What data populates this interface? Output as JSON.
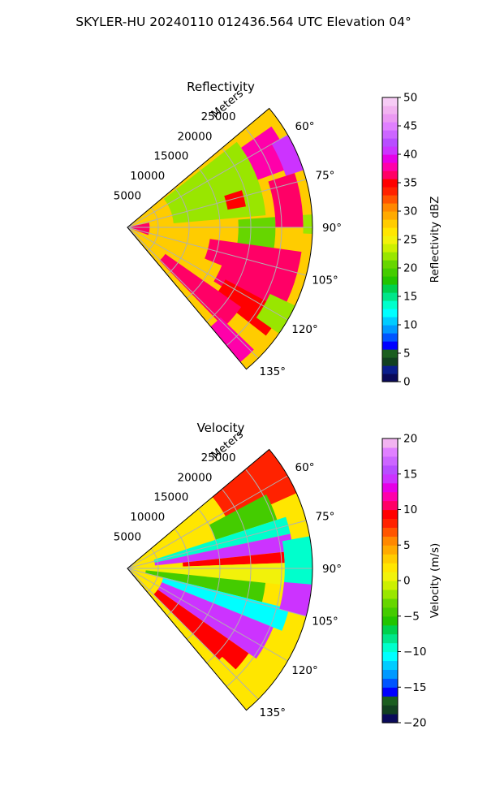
{
  "figure": {
    "suptitle": "SKYLER-HU  20240110  012436.564 UTC Elevation 04°"
  },
  "chart_data": [
    {
      "type": "heatmap",
      "projection": "polar-sector",
      "title": "Reflectivity",
      "radial_axis_label": "Meters",
      "radial_ticks": [
        5000,
        10000,
        15000,
        20000,
        25000
      ],
      "radial_tick_labels": [
        "5000",
        "10000",
        "15000",
        "20000",
        "25000"
      ],
      "range_max_m": 30000,
      "azimuth_range_deg": [
        50,
        140
      ],
      "azimuth_ticks": [
        60,
        75,
        90,
        105,
        120,
        135
      ],
      "azimuth_tick_labels": [
        "60°",
        "75°",
        "90°",
        "105°",
        "120°",
        "135°"
      ],
      "grid": true,
      "colorbar": {
        "label": "Reflectivity dBZ",
        "min": 0,
        "max": 50,
        "ticks": [
          0,
          5,
          10,
          15,
          20,
          25,
          30,
          35,
          40,
          45,
          50
        ],
        "tick_labels": [
          "0",
          "5",
          "10",
          "15",
          "20",
          "25",
          "30",
          "35",
          "40",
          "45",
          "50"
        ],
        "colors": [
          "#0a0a5a",
          "#0a1e8c",
          "#114020",
          "#1b5e20",
          "#0000ff",
          "#0055ff",
          "#0099ff",
          "#00ccff",
          "#00ffff",
          "#00ffcc",
          "#00e68a",
          "#00d14d",
          "#22c400",
          "#44cc00",
          "#66d600",
          "#99e600",
          "#ccf000",
          "#f2f20a",
          "#ffe600",
          "#ffcc00",
          "#ffaa00",
          "#ff8800",
          "#ff5500",
          "#ff2200",
          "#ff0000",
          "#ff0066",
          "#ff00aa",
          "#e600e6",
          "#cc33ff",
          "#b84dff",
          "#cc66ff",
          "#e080ff",
          "#eb99f2",
          "#f2b3f0",
          "#f7ccf5"
        ]
      },
      "features": [
        {
          "az": [
            50,
            140
          ],
          "r": [
            0.0,
            1.0
          ],
          "level": 28
        },
        {
          "az": [
            52,
            85
          ],
          "r": [
            0.25,
            0.75
          ],
          "level": 22
        },
        {
          "az": [
            86,
            100
          ],
          "r": [
            0.6,
            0.8
          ],
          "level": 21
        },
        {
          "az": [
            55,
            70
          ],
          "r": [
            0.75,
            0.95
          ],
          "level": 38
        },
        {
          "az": [
            60,
            72
          ],
          "r": [
            0.9,
            1.0
          ],
          "level": 40
        },
        {
          "az": [
            72,
            90
          ],
          "r": [
            0.8,
            0.95
          ],
          "level": 36
        },
        {
          "az": [
            72,
            80
          ],
          "r": [
            0.55,
            0.65
          ],
          "level": 35
        },
        {
          "az": [
            98,
            112
          ],
          "r": [
            0.45,
            0.95
          ],
          "level": 36
        },
        {
          "az": [
            108,
            122
          ],
          "r": [
            0.55,
            0.95
          ],
          "level": 37
        },
        {
          "az": [
            118,
            128
          ],
          "r": [
            0.6,
            0.95
          ],
          "level": 35
        },
        {
          "az": [
            125,
            136
          ],
          "r": [
            0.25,
            0.75
          ],
          "level": 36
        },
        {
          "az": [
            134,
            140
          ],
          "r": [
            0.7,
            0.95
          ],
          "level": 38
        },
        {
          "az": [
            115,
            125
          ],
          "r": [
            0.85,
            1.0
          ],
          "level": 22
        },
        {
          "az": [
            78,
            110
          ],
          "r": [
            0.0,
            0.12
          ],
          "level": 36
        },
        {
          "az": [
            86,
            92
          ],
          "r": [
            0.95,
            1.0
          ],
          "level": 22
        }
      ]
    },
    {
      "type": "heatmap",
      "projection": "polar-sector",
      "title": "Velocity",
      "radial_axis_label": "Meters",
      "radial_ticks": [
        5000,
        10000,
        15000,
        20000,
        25000
      ],
      "radial_tick_labels": [
        "5000",
        "10000",
        "15000",
        "20000",
        "25000"
      ],
      "range_max_m": 30000,
      "azimuth_range_deg": [
        50,
        140
      ],
      "azimuth_ticks": [
        60,
        75,
        90,
        105,
        120,
        135
      ],
      "azimuth_tick_labels": [
        "60°",
        "75°",
        "90°",
        "105°",
        "120°",
        "135°"
      ],
      "grid": true,
      "colorbar": {
        "label": "Velocity (m/s)",
        "min": -20,
        "max": 20,
        "ticks": [
          -20,
          -15,
          -10,
          -5,
          0,
          5,
          10,
          15,
          20
        ],
        "tick_labels": [
          "−20",
          "−15",
          "−10",
          "−5",
          "0",
          "5",
          "10",
          "15",
          "20"
        ],
        "colors": [
          "#0a0a5a",
          "#114020",
          "#1b5e20",
          "#0000ff",
          "#0055ff",
          "#0099ff",
          "#00ccff",
          "#00ffff",
          "#00ffcc",
          "#00e68a",
          "#00d14d",
          "#22c400",
          "#44cc00",
          "#66d600",
          "#99e600",
          "#ccf000",
          "#f2f20a",
          "#ffe600",
          "#ffcc00",
          "#ffaa00",
          "#ff8800",
          "#ff5500",
          "#ff2200",
          "#ff0000",
          "#ff0066",
          "#ff00aa",
          "#e600e6",
          "#cc33ff",
          "#b84dff",
          "#cc66ff",
          "#e080ff",
          "#f2b3f0"
        ]
      },
      "features": [
        {
          "az": [
            50,
            140
          ],
          "r": [
            0.0,
            1.0
          ],
          "level": 2
        },
        {
          "az": [
            50,
            66
          ],
          "r": [
            0.6,
            1.0
          ],
          "level": 8
        },
        {
          "az": [
            62,
            72
          ],
          "r": [
            0.5,
            0.85
          ],
          "level": -4
        },
        {
          "az": [
            72,
            78
          ],
          "r": [
            0.15,
            0.9
          ],
          "level": -10
        },
        {
          "az": [
            78,
            84
          ],
          "r": [
            0.15,
            0.9
          ],
          "level": 14
        },
        {
          "az": [
            84,
            88
          ],
          "r": [
            0.3,
            0.85
          ],
          "level": 9
        },
        {
          "az": [
            88,
            96
          ],
          "r": [
            0.0,
            1.0
          ],
          "level": 1
        },
        {
          "az": [
            96,
            104
          ],
          "r": [
            0.1,
            0.75
          ],
          "level": -5
        },
        {
          "az": [
            104,
            112
          ],
          "r": [
            0.2,
            0.9
          ],
          "level": -11
        },
        {
          "az": [
            112,
            125
          ],
          "r": [
            0.2,
            0.85
          ],
          "level": 14
        },
        {
          "az": [
            125,
            135
          ],
          "r": [
            0.2,
            0.8
          ],
          "level": 9
        },
        {
          "az": [
            133,
            140
          ],
          "r": [
            0.7,
            1.0
          ],
          "level": 2
        },
        {
          "az": [
            80,
            100
          ],
          "r": [
            0.85,
            1.0
          ],
          "level": -9
        },
        {
          "az": [
            95,
            105
          ],
          "r": [
            0.85,
            1.0
          ],
          "level": 14
        }
      ]
    }
  ]
}
